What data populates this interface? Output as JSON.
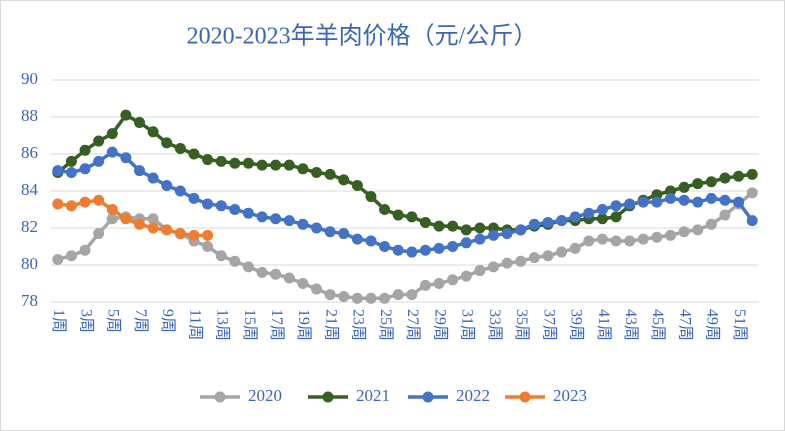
{
  "chart_data": {
    "type": "line",
    "title": "2020-2023年羊肉价格（元/公斤）",
    "categories": [
      "1周",
      null,
      "3周",
      null,
      "5周",
      null,
      "7周",
      null,
      "9周",
      null,
      "11周",
      null,
      "13周",
      null,
      "15周",
      null,
      "17周",
      null,
      "19周",
      null,
      "21周",
      null,
      "23周",
      null,
      "25周",
      null,
      "27周",
      null,
      "29周",
      null,
      "31周",
      null,
      "33周",
      null,
      "35周",
      null,
      "37周",
      null,
      "39周",
      null,
      "41周",
      null,
      "43周",
      null,
      "45周",
      null,
      "47周",
      null,
      "49周",
      null,
      "51周",
      null
    ],
    "series": [
      {
        "name": "2020",
        "color": "#a5a5a5",
        "values": [
          80.3,
          80.5,
          80.8,
          81.7,
          82.5,
          82.6,
          82.5,
          82.5,
          81.9,
          81.7,
          81.3,
          81.0,
          80.5,
          80.2,
          79.9,
          79.6,
          79.5,
          79.3,
          79.0,
          78.7,
          78.4,
          78.3,
          78.2,
          78.2,
          78.2,
          78.4,
          78.4,
          78.9,
          79.0,
          79.2,
          79.4,
          79.7,
          79.9,
          80.1,
          80.2,
          80.4,
          80.5,
          80.7,
          80.9,
          81.3,
          81.4,
          81.3,
          81.3,
          81.4,
          81.5,
          81.6,
          81.8,
          81.9,
          82.2,
          82.7,
          83.3,
          83.9
        ]
      },
      {
        "name": "2021",
        "color": "#375e23",
        "values": [
          85.0,
          85.6,
          86.2,
          86.7,
          87.1,
          88.1,
          87.7,
          87.2,
          86.6,
          86.3,
          86.0,
          85.7,
          85.6,
          85.5,
          85.5,
          85.4,
          85.4,
          85.4,
          85.2,
          85.0,
          84.9,
          84.6,
          84.3,
          83.7,
          83.0,
          82.7,
          82.6,
          82.3,
          82.1,
          82.1,
          81.9,
          82.0,
          82.0,
          81.9,
          81.9,
          82.1,
          82.2,
          82.4,
          82.4,
          82.5,
          82.5,
          82.6,
          83.2,
          83.5,
          83.8,
          84.0,
          84.2,
          84.4,
          84.5,
          84.7,
          84.8,
          84.9
        ]
      },
      {
        "name": "2022",
        "color": "#4472c4",
        "values": [
          85.1,
          85.0,
          85.2,
          85.6,
          86.1,
          85.8,
          85.1,
          84.7,
          84.3,
          84.0,
          83.6,
          83.3,
          83.2,
          83.0,
          82.8,
          82.6,
          82.5,
          82.4,
          82.2,
          82.0,
          81.8,
          81.7,
          81.4,
          81.3,
          81.0,
          80.8,
          80.7,
          80.8,
          80.9,
          81.0,
          81.2,
          81.4,
          81.6,
          81.7,
          81.9,
          82.2,
          82.3,
          82.4,
          82.6,
          82.8,
          83.0,
          83.2,
          83.3,
          83.4,
          83.4,
          83.6,
          83.5,
          83.4,
          83.6,
          83.5,
          83.4,
          82.4
        ]
      },
      {
        "name": "2023",
        "color": "#ed7d31",
        "values": [
          83.3,
          83.2,
          83.4,
          83.5,
          83.0,
          82.5,
          82.2,
          82.0,
          81.9,
          81.7,
          81.6,
          81.6,
          null,
          null,
          null,
          null,
          null,
          null,
          null,
          null,
          null,
          null,
          null,
          null,
          null,
          null,
          null,
          null,
          null,
          null,
          null,
          null,
          null,
          null,
          null,
          null,
          null,
          null,
          null,
          null,
          null,
          null,
          null,
          null,
          null,
          null,
          null,
          null,
          null,
          null,
          null,
          null
        ]
      }
    ],
    "ylim": [
      78,
      90
    ],
    "yticks": [
      78,
      80,
      82,
      84,
      86,
      88,
      90
    ],
    "grid": true,
    "legend": "bottom"
  }
}
